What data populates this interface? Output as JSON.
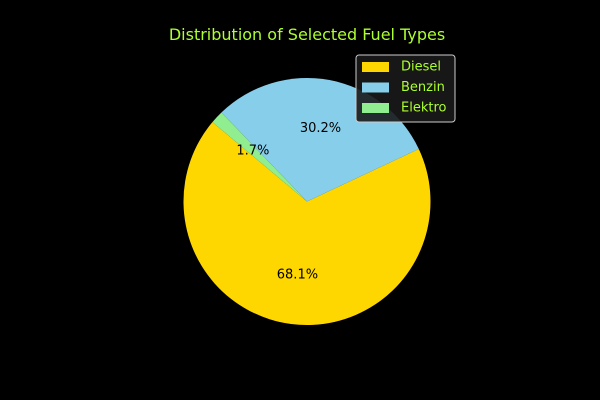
{
  "chart_data": {
    "type": "pie",
    "title": "Distribution of Selected Fuel Types",
    "categories": [
      "Diesel",
      "Benzin",
      "Elektro"
    ],
    "values": [
      68.1,
      30.2,
      1.7
    ],
    "value_labels": [
      "68.1%",
      "30.2%",
      "1.7%"
    ],
    "colors": [
      "#ffd700",
      "#87ceeb",
      "#90ee90"
    ],
    "start_angle_deg": 140,
    "direction": "counterclockwise",
    "legend_location": "top-right",
    "text_color": "#adff2f",
    "background": "#000000"
  }
}
